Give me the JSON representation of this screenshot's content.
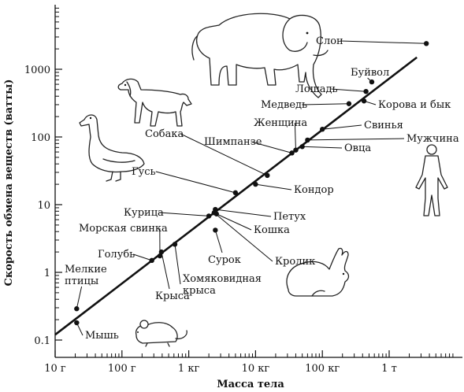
{
  "chart_data": {
    "type": "scatter",
    "title": "",
    "xlabel": "Масса тела",
    "ylabel": "Скорость обмена веществ (ватты)",
    "x_scale": "log",
    "y_scale": "log",
    "xlim_kg": [
      0.01,
      3000
    ],
    "ylim_watts": [
      0.1,
      3000
    ],
    "grid": false,
    "x_ticks": [
      {
        "value": 0.01,
        "label": "10 г"
      },
      {
        "value": 0.1,
        "label": "100 г"
      },
      {
        "value": 1,
        "label": "1 кг"
      },
      {
        "value": 10,
        "label": "10 кг"
      },
      {
        "value": 100,
        "label": "100 кг"
      },
      {
        "value": 1000,
        "label": "1 т"
      }
    ],
    "y_ticks": [
      {
        "value": 0.1,
        "label": "0.1"
      },
      {
        "value": 1,
        "label": "1"
      },
      {
        "value": 10,
        "label": "10"
      },
      {
        "value": 100,
        "label": "100"
      },
      {
        "value": 1000,
        "label": "1000"
      }
    ],
    "fit_line": {
      "from": {
        "mass_kg": 0.01,
        "watts": 0.12
      },
      "to": {
        "mass_kg": 2600,
        "watts": 1500
      }
    },
    "points": [
      {
        "name": "Мышь",
        "mass_kg": 0.021,
        "watts": 0.18,
        "label_pos": [
          108,
          430
        ],
        "anchor": "start"
      },
      {
        "name": "Мелкие\nптицы",
        "mass_kg": 0.021,
        "watts": 0.29,
        "label_pos": [
          82,
          346
        ],
        "anchor": "start"
      },
      {
        "name": "Голубь",
        "mass_kg": 0.28,
        "watts": 1.5,
        "label_pos": [
          124,
          327
        ],
        "anchor": "start"
      },
      {
        "name": "Морская свинка",
        "mass_kg": 0.37,
        "watts": 1.75,
        "label_pos": [
          100,
          294
        ],
        "anchor": "start"
      },
      {
        "name": "Крыса",
        "mass_kg": 0.39,
        "watts": 2.0,
        "label_pos": [
          197,
          380
        ],
        "anchor": "start"
      },
      {
        "name": "Хомяковидная\nкрыса",
        "mass_kg": 0.62,
        "watts": 2.6,
        "label_pos": [
          232,
          358
        ],
        "anchor": "start"
      },
      {
        "name": "Курица",
        "mass_kg": 2.0,
        "watts": 6.8,
        "label_pos": [
          157,
          274
        ],
        "anchor": "start"
      },
      {
        "name": "Петух",
        "mass_kg": 2.5,
        "watts": 8.5,
        "label_pos": [
          347,
          279
        ],
        "anchor": "start"
      },
      {
        "name": "Кошка",
        "mass_kg": 2.6,
        "watts": 7.3,
        "label_pos": [
          322,
          296
        ],
        "anchor": "start"
      },
      {
        "name": "Сурок",
        "mass_kg": 2.5,
        "watts": 4.2,
        "label_pos": [
          264,
          334
        ],
        "anchor": "start"
      },
      {
        "name": "Кролик",
        "mass_kg": 2.4,
        "watts": 7.6,
        "label_pos": [
          349,
          336
        ],
        "anchor": "start"
      },
      {
        "name": "Гусь",
        "mass_kg": 5.0,
        "watts": 15,
        "label_pos": [
          167,
          222
        ],
        "anchor": "start"
      },
      {
        "name": "Кондор",
        "mass_kg": 10.0,
        "watts": 20,
        "label_pos": [
          373,
          245
        ],
        "anchor": "start"
      },
      {
        "name": "Собака",
        "mass_kg": 15.0,
        "watts": 27,
        "label_pos": [
          184,
          174
        ],
        "anchor": "start"
      },
      {
        "name": "Шимпанзе",
        "mass_kg": 35.0,
        "watts": 58,
        "label_pos": [
          259,
          184
        ],
        "anchor": "start"
      },
      {
        "name": "Женщина",
        "mass_kg": 40.0,
        "watts": 64,
        "label_pos": [
          322,
          160
        ],
        "anchor": "start"
      },
      {
        "name": "Овца",
        "mass_kg": 50.0,
        "watts": 72,
        "label_pos": [
          437,
          192
        ],
        "anchor": "start"
      },
      {
        "name": "Мужчина",
        "mass_kg": 60.0,
        "watts": 90,
        "label_pos": [
          516,
          180
        ],
        "anchor": "start"
      },
      {
        "name": "Свинья",
        "mass_kg": 100,
        "watts": 130,
        "label_pos": [
          462,
          163
        ],
        "anchor": "start"
      },
      {
        "name": "Медведь",
        "mass_kg": 250,
        "watts": 310,
        "label_pos": [
          331,
          137
        ],
        "anchor": "start"
      },
      {
        "name": "Лошадь",
        "mass_kg": 450,
        "watts": 470,
        "label_pos": [
          375,
          117
        ],
        "anchor": "start"
      },
      {
        "name": "Корова и бык",
        "mass_kg": 420,
        "watts": 340,
        "label_pos": [
          480,
          137
        ],
        "anchor": "start"
      },
      {
        "name": "Буйвол",
        "mass_kg": 550,
        "watts": 650,
        "label_pos": [
          445,
          96
        ],
        "anchor": "start"
      },
      {
        "name": "Слон",
        "mass_kg": 3600,
        "watts": 2400,
        "label_pos": [
          401,
          56
        ],
        "anchor": "start"
      }
    ],
    "illustrations": [
      "elephant-icon",
      "dog-icon",
      "goose-icon",
      "human-icon",
      "rabbit-icon",
      "mouse-icon"
    ]
  }
}
